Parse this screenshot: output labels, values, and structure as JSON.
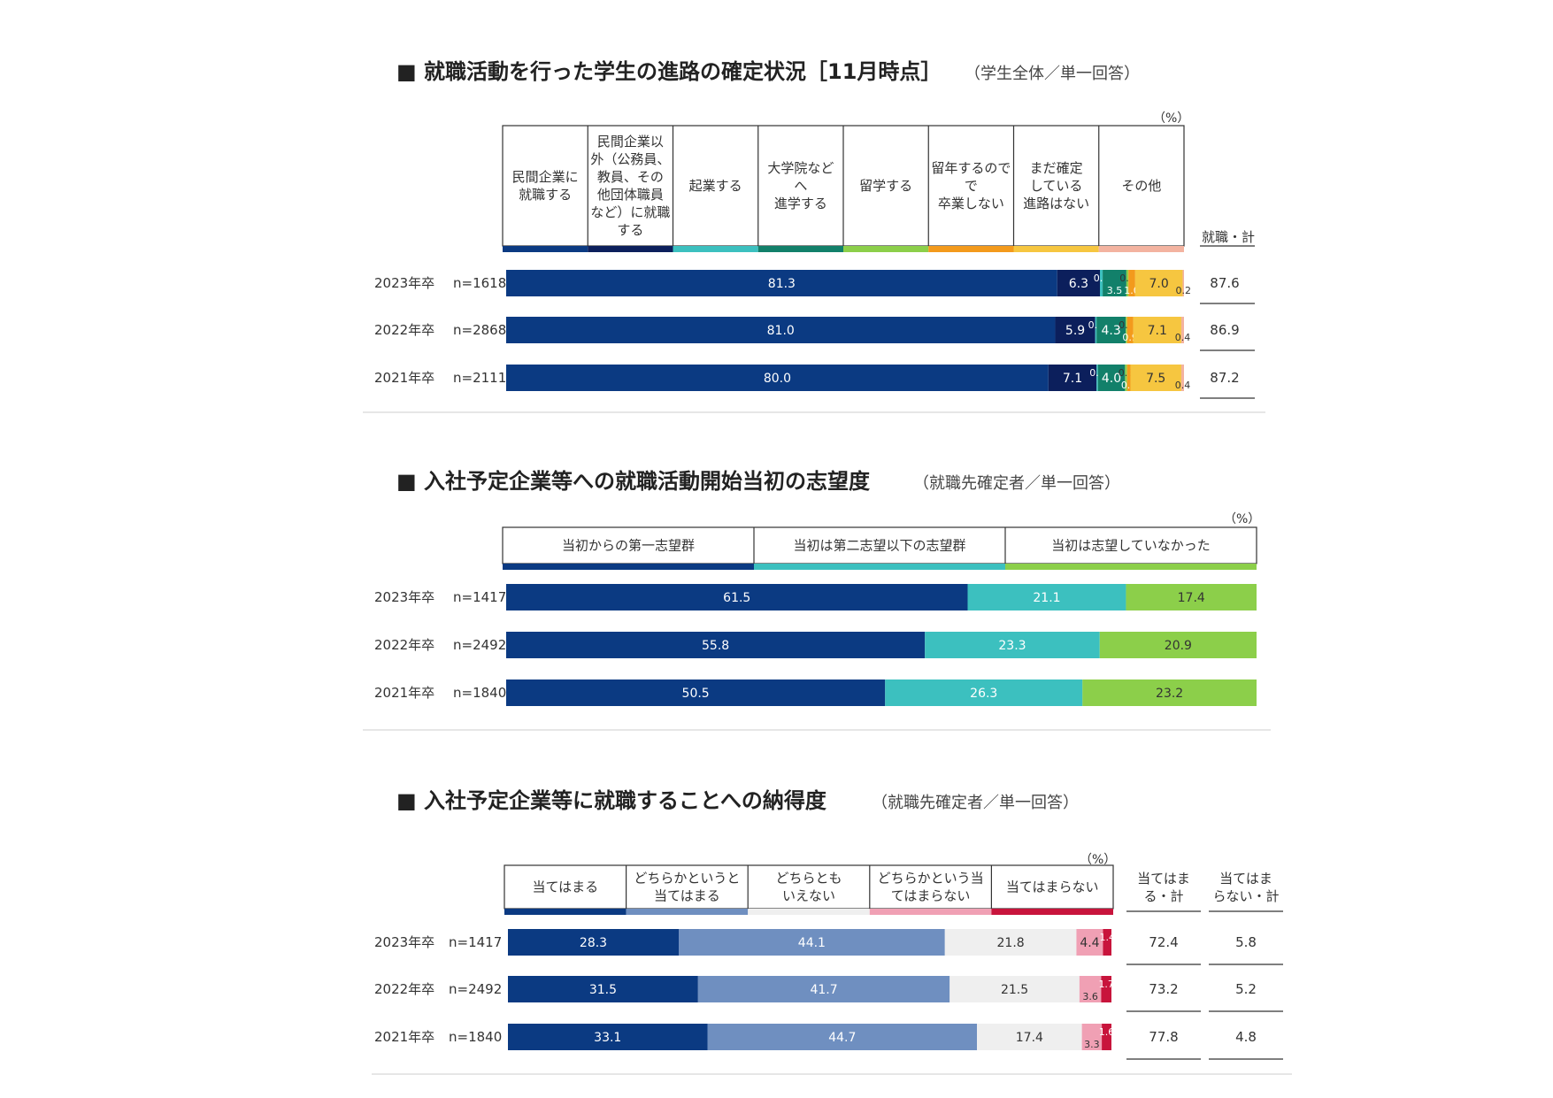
{
  "colors": {
    "navy": "#0b3a82",
    "darknavy": "#0c1f5c",
    "teal": "#3cc0bf",
    "darkteal": "#12806a",
    "green": "#8ccf4a",
    "orange": "#f39a1c",
    "yellow": "#f6c640",
    "salmon": "#f3b3a0",
    "steel": "#6f8fc0",
    "lightgray": "#efefef",
    "pink": "#f0a0b4",
    "crimson": "#c8143c"
  },
  "chart_data": [
    {
      "type": "bar",
      "orientation": "horizontal-stacked",
      "title": "■ 就職活動を行った学生の進路の確定状況［11月時点］",
      "subtitle": "（学生全体／単一回答）",
      "unit": "（%）",
      "categories": [
        "民間企業に就職する",
        "民間企業以外（公務員、教員、その他団体職員など）に就職する",
        "起業する",
        "大学院などへ進学する",
        "留学する",
        "留年するので卒業しない",
        "まだ確定している進路はない",
        "その他"
      ],
      "header_lines": [
        [
          "民間企業に",
          "就職する"
        ],
        [
          "民間企業以",
          "外（公務員、",
          "教員、その",
          "他団体職員",
          "など）に就職",
          "する"
        ],
        [
          "起業する"
        ],
        [
          "大学院など",
          "へ",
          "進学する"
        ],
        [
          "留学する"
        ],
        [
          "留年するので",
          "で",
          "卒業しない"
        ],
        [
          "まだ確定",
          "している",
          "進路はない"
        ],
        [
          "その他"
        ]
      ],
      "series_colors": [
        "navy",
        "darknavy",
        "teal",
        "darkteal",
        "green",
        "orange",
        "yellow",
        "salmon"
      ],
      "total_label": "就職・計",
      "rows": [
        {
          "year": "2023年卒",
          "n": "n=1618",
          "values": [
            81.3,
            6.3,
            0.4,
            3.5,
            0.3,
            1.0,
            7.0,
            0.2
          ],
          "labels": [
            "81.3",
            "6.3",
            "0.4",
            "3.5",
            "0.3",
            "1.0",
            "7.0",
            "0.2"
          ],
          "total": "87.6"
        },
        {
          "year": "2022年卒",
          "n": "n=2868",
          "values": [
            81.0,
            5.9,
            0.2,
            4.3,
            0.2,
            0.9,
            7.1,
            0.4
          ],
          "labels": [
            "81.0",
            "5.9",
            "0.2",
            "4.3",
            "0.2",
            "0.9",
            "7.1",
            "0.4"
          ],
          "total": "86.9"
        },
        {
          "year": "2021年卒",
          "n": "n=2111",
          "values": [
            80.0,
            7.1,
            0.2,
            4.0,
            0.3,
            0.5,
            7.5,
            0.4
          ],
          "labels": [
            "80.0",
            "7.1",
            "0.2",
            "4.0",
            "0.3",
            "0.5",
            "7.5",
            "0.4"
          ],
          "total": "87.2"
        }
      ]
    },
    {
      "type": "bar",
      "orientation": "horizontal-stacked",
      "title": "■ 入社予定企業等への就職活動開始当初の志望度",
      "subtitle": "（就職先確定者／単一回答）",
      "unit": "（%）",
      "categories": [
        "当初からの第一志望群",
        "当初は第二志望以下の志望群",
        "当初は志望していなかった"
      ],
      "series_colors": [
        "navy",
        "teal",
        "green"
      ],
      "rows": [
        {
          "year": "2023年卒",
          "n": "n=1417",
          "values": [
            61.5,
            21.1,
            17.4
          ],
          "labels": [
            "61.5",
            "21.1",
            "17.4"
          ]
        },
        {
          "year": "2022年卒",
          "n": "n=2492",
          "values": [
            55.8,
            23.3,
            20.9
          ],
          "labels": [
            "55.8",
            "23.3",
            "20.9"
          ]
        },
        {
          "year": "2021年卒",
          "n": "n=1840",
          "values": [
            50.5,
            26.3,
            23.2
          ],
          "labels": [
            "50.5",
            "26.3",
            "23.2"
          ]
        }
      ]
    },
    {
      "type": "bar",
      "orientation": "horizontal-stacked",
      "title": "■ 入社予定企業等に就職することへの納得度",
      "subtitle": "（就職先確定者／単一回答）",
      "unit": "（%）",
      "categories": [
        "当てはまる",
        "どちらかというと当てはまる",
        "どちらともいえない",
        "どちらかというと当てはまらない",
        "当てはまらない"
      ],
      "header_lines": [
        [
          "当てはまる"
        ],
        [
          "どちらかというと",
          "当てはまる"
        ],
        [
          "どちらとも",
          "いえない"
        ],
        [
          "どちらかという当",
          "てはまらない"
        ],
        [
          "当てはまらない"
        ]
      ],
      "series_colors": [
        "navy",
        "steel",
        "lightgray",
        "pink",
        "crimson"
      ],
      "total_labels": [
        [
          "当てはま",
          "る・計"
        ],
        [
          "当てはま",
          "らない・計"
        ]
      ],
      "rows": [
        {
          "year": "2023年卒",
          "n": "n=1417",
          "values": [
            28.3,
            44.1,
            21.8,
            4.4,
            1.4
          ],
          "labels": [
            "28.3",
            "44.1",
            "21.8",
            "4.4",
            "1.4"
          ],
          "totals": [
            "72.4",
            "5.8"
          ]
        },
        {
          "year": "2022年卒",
          "n": "n=2492",
          "values": [
            31.5,
            41.7,
            21.5,
            3.6,
            1.7
          ],
          "labels": [
            "31.5",
            "41.7",
            "21.5",
            "3.6",
            "1.7"
          ],
          "totals": [
            "73.2",
            "5.2"
          ]
        },
        {
          "year": "2021年卒",
          "n": "n=1840",
          "values": [
            33.1,
            44.7,
            17.4,
            3.3,
            1.6
          ],
          "labels": [
            "33.1",
            "44.7",
            "17.4",
            "3.3",
            "1.6"
          ],
          "totals": [
            "77.8",
            "4.8"
          ]
        }
      ]
    }
  ]
}
